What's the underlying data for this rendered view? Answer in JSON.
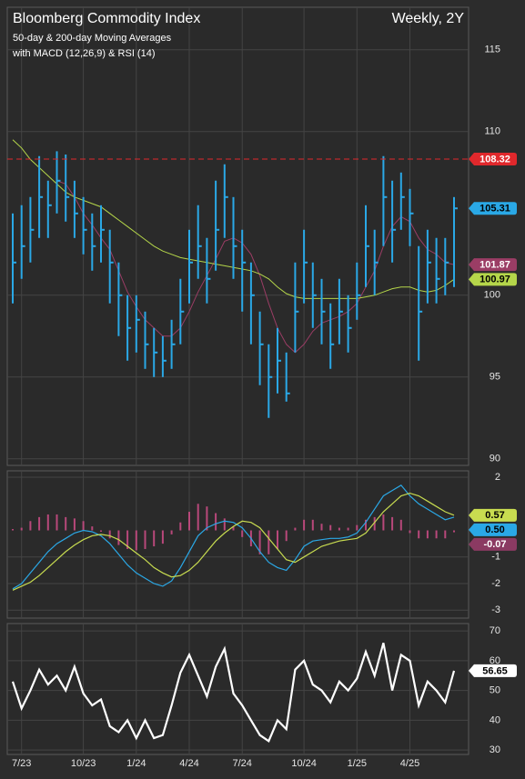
{
  "chart_data": [
    {
      "type": "ohlc",
      "title": "Bloomberg Commodity Index",
      "annotation": "Weekly, 2Y",
      "subtitle": [
        "50-day & 200-day Moving Averages",
        "with MACD (12,26,9) & RSI (14)"
      ],
      "color": "#2aa8e6",
      "high": [
        105,
        105.5,
        106,
        108.5,
        107,
        108.8,
        108.6,
        107,
        106,
        105,
        105.5,
        104,
        102,
        100,
        100,
        99,
        98,
        97.5,
        98.5,
        101,
        104,
        105.5,
        103.5,
        107,
        108,
        106,
        104,
        102,
        99,
        97,
        98,
        96.5,
        102,
        104,
        102,
        101,
        99.5,
        101,
        100,
        102,
        105.5,
        104,
        108.5,
        107,
        107.5,
        106.5,
        103,
        104,
        103.5,
        103.5,
        106
      ],
      "low": [
        99.5,
        101,
        102,
        103.5,
        103.5,
        105,
        104.5,
        103.5,
        102.5,
        101.5,
        102,
        99.5,
        97.5,
        96,
        96.5,
        95.5,
        95,
        95,
        95.5,
        97,
        99.5,
        101,
        99.5,
        101.5,
        103.5,
        101,
        99,
        97,
        94.5,
        92.5,
        94,
        93.5,
        96.5,
        99.5,
        98,
        97,
        95.5,
        97,
        96.5,
        98.5,
        100.5,
        100,
        103,
        102,
        104,
        103,
        96,
        99.5,
        99.5,
        100,
        100.5
      ],
      "close": [
        102,
        103,
        104,
        106,
        105.5,
        107,
        106,
        105,
        104,
        103,
        104,
        102,
        100,
        98,
        98.5,
        97,
        96.5,
        96,
        97,
        99,
        102,
        103,
        101,
        104,
        106,
        103,
        102,
        100,
        97,
        95,
        96,
        94,
        99,
        102,
        100,
        99,
        97,
        99,
        98,
        100,
        103,
        102,
        106,
        104,
        106,
        105,
        99,
        102,
        101,
        102,
        105.31
      ],
      "series": [
        {
          "color": "#9b3d65",
          "values": [
            null,
            null,
            null,
            null,
            null,
            107,
            106.8,
            106,
            105,
            104.3,
            103.5,
            102.8,
            101.5,
            100.2,
            99.3,
            98.5,
            98,
            97.5,
            97.5,
            98,
            99,
            100.2,
            101.2,
            102.2,
            103.3,
            103.5,
            103.2,
            102.5,
            101.2,
            99.5,
            98,
            97,
            96.5,
            97,
            97.8,
            98.3,
            98.5,
            98.7,
            99,
            99.5,
            100.5,
            101.5,
            103,
            104.2,
            104.8,
            104.5,
            103.5,
            102.8,
            102.5,
            102,
            101.87
          ]
        },
        {
          "color": "#b5d64a",
          "values": [
            109.5,
            109,
            108.3,
            107.8,
            107.3,
            106.8,
            106.3,
            106,
            105.8,
            105.6,
            105.4,
            105,
            104.6,
            104.2,
            103.8,
            103.4,
            103,
            102.7,
            102.5,
            102.3,
            102.2,
            102.1,
            102,
            101.9,
            101.8,
            101.7,
            101.6,
            101.5,
            101.3,
            101,
            100.5,
            100.1,
            99.9,
            99.8,
            99.8,
            99.8,
            99.8,
            99.8,
            99.8,
            99.8,
            99.9,
            100,
            100.2,
            100.4,
            100.5,
            100.5,
            100.3,
            100.2,
            100.3,
            100.6,
            100.97
          ]
        }
      ],
      "ref_line": {
        "value": 108.32,
        "color": "#e0282c"
      },
      "ylim": [
        89.6,
        117.6
      ],
      "yticks": [
        90,
        95,
        100,
        110,
        115
      ],
      "grid": true
    },
    {
      "type": "macd",
      "series": [
        {
          "color": "#2aa8e6",
          "values": [
            -2.2,
            -2.0,
            -1.6,
            -1.2,
            -0.8,
            -0.5,
            -0.3,
            -0.1,
            0,
            -0.05,
            -0.2,
            -0.5,
            -0.9,
            -1.3,
            -1.6,
            -1.8,
            -2.0,
            -2.1,
            -1.9,
            -1.4,
            -0.8,
            -0.2,
            0.1,
            0.25,
            0.35,
            0.3,
            0.1,
            -0.3,
            -0.8,
            -1.2,
            -1.4,
            -1.5,
            -1.1,
            -0.6,
            -0.4,
            -0.35,
            -0.3,
            -0.3,
            -0.25,
            -0.1,
            0.3,
            0.8,
            1.3,
            1.5,
            1.7,
            1.3,
            1.0,
            0.8,
            0.6,
            0.4,
            0.5
          ],
          "value_labels": [
            null,
            null,
            null,
            null,
            null,
            null,
            null,
            null,
            null,
            null,
            null,
            null,
            null,
            null,
            null,
            null,
            null,
            null,
            null,
            null,
            null,
            null,
            null,
            null,
            null,
            null,
            null,
            null,
            null,
            null,
            null,
            null,
            null,
            null,
            null,
            null,
            null,
            null,
            null,
            null,
            null,
            null,
            null,
            null,
            null,
            null,
            null,
            null,
            null,
            null,
            "0.50"
          ]
        },
        {
          "color": "#c8dc50",
          "values": [
            -2.25,
            -2.1,
            -1.95,
            -1.7,
            -1.4,
            -1.1,
            -0.8,
            -0.55,
            -0.35,
            -0.2,
            -0.15,
            -0.2,
            -0.35,
            -0.6,
            -0.85,
            -1.1,
            -1.4,
            -1.6,
            -1.75,
            -1.7,
            -1.5,
            -1.2,
            -0.8,
            -0.4,
            -0.1,
            0.15,
            0.35,
            0.3,
            0.1,
            -0.3,
            -0.7,
            -1.1,
            -1.2,
            -1.0,
            -0.8,
            -0.6,
            -0.5,
            -0.4,
            -0.35,
            -0.3,
            -0.1,
            0.3,
            0.7,
            1.0,
            1.3,
            1.4,
            1.3,
            1.1,
            0.9,
            0.7,
            0.57
          ]
        }
      ],
      "histogram": {
        "color": "#b8487a",
        "values": [
          0.05,
          0.1,
          0.35,
          0.5,
          0.6,
          0.6,
          0.5,
          0.45,
          0.35,
          0.15,
          -0.05,
          -0.3,
          -0.55,
          -0.7,
          -0.75,
          -0.7,
          -0.6,
          -0.5,
          -0.15,
          0.3,
          0.7,
          1.0,
          0.9,
          0.65,
          0.45,
          0.15,
          -0.25,
          -0.6,
          -0.9,
          -0.9,
          -0.7,
          -0.4,
          0.1,
          0.4,
          0.4,
          0.25,
          0.2,
          0.1,
          0.1,
          0.2,
          0.4,
          0.5,
          0.6,
          0.5,
          0.4,
          -0.1,
          -0.3,
          -0.3,
          -0.3,
          -0.3,
          -0.07
        ]
      },
      "ylim": [
        -3.3,
        2.24
      ],
      "yticks": [
        -3,
        -2,
        -1,
        2
      ],
      "grid": true
    },
    {
      "type": "line",
      "categories": [
        null,
        "7/23",
        null,
        null,
        null,
        null,
        null,
        null,
        "10/23",
        null,
        null,
        null,
        null,
        null,
        "1/24",
        null,
        null,
        null,
        null,
        null,
        "4/24",
        null,
        null,
        null,
        null,
        null,
        "7/24",
        null,
        null,
        null,
        null,
        null,
        null,
        "10/24",
        null,
        null,
        null,
        null,
        null,
        "1/25",
        null,
        null,
        null,
        null,
        null,
        "4/25",
        null,
        null,
        null,
        null,
        null
      ],
      "series": [
        {
          "color": "#ffffff",
          "values": [
            53,
            44,
            50,
            57,
            52,
            55,
            50,
            58,
            49,
            45,
            47,
            38,
            36,
            40,
            34,
            40,
            34,
            35,
            45,
            56,
            62,
            55,
            48,
            58,
            64,
            49,
            45,
            40,
            35,
            33,
            40,
            37,
            57,
            60,
            52,
            50,
            46,
            53,
            50,
            54,
            63,
            55,
            66,
            50,
            62,
            60,
            45,
            53,
            50,
            46,
            56.65
          ]
        }
      ],
      "ylim": [
        28.5,
        72.5
      ],
      "yticks": [
        30,
        40,
        50,
        60,
        70
      ],
      "grid": true
    }
  ]
}
